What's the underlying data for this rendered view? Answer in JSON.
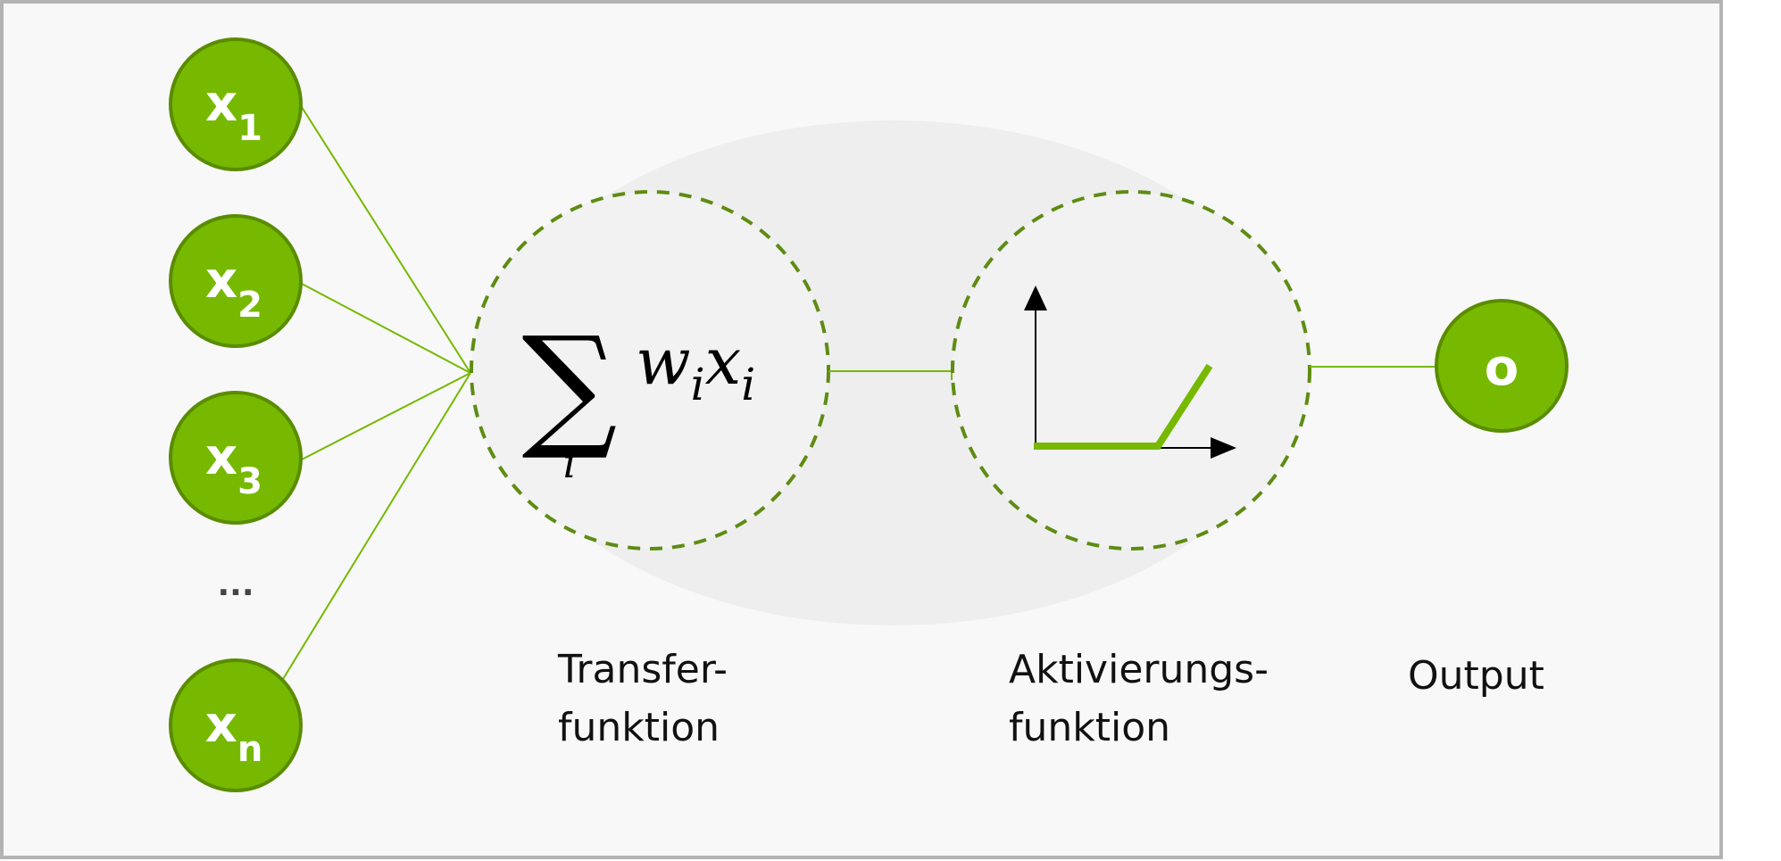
{
  "inputs": [
    {
      "base": "x",
      "sub": "1"
    },
    {
      "base": "x",
      "sub": "2"
    },
    {
      "base": "x",
      "sub": "3"
    },
    {
      "base": "x",
      "sub": "n"
    }
  ],
  "ellipsis": "...",
  "formula": {
    "sum_symbol": "∑",
    "sum_index": "i",
    "w": "w",
    "w_sub": "i",
    "x": "x",
    "x_sub": "i"
  },
  "output_node": {
    "label": "o"
  },
  "captions": {
    "transfer_line1": "Transfer-",
    "transfer_line2": "funktion",
    "activation_line1": "Aktivierungs-",
    "activation_line2": "funktion",
    "output": "Output"
  },
  "colors": {
    "accent": "#76b900",
    "accent_dark": "#5a8c00",
    "dash": "#5e8c12"
  }
}
